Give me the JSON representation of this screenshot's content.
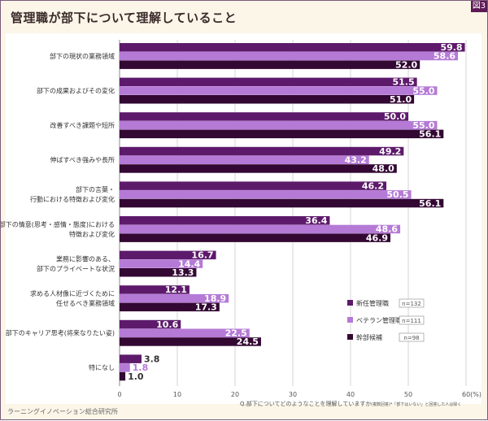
{
  "figure_tag": "図3",
  "title": "管理職が部下について理解していること",
  "credit": "ラーニングイノベーション総合研究所",
  "question_note": "Q.部下についてどのようなことを理解していますか",
  "question_note_small": "(複数回答)*「部下はいない」と回答した人は除く",
  "colors": {
    "series1": "#5d1a6b",
    "series2": "#b57ad6",
    "series3": "#330833",
    "frame": "#fbf6e8",
    "grid": "#cccccc"
  },
  "chart_data": {
    "type": "bar",
    "orientation": "horizontal",
    "categories": [
      [
        "部下の現状の業務領域"
      ],
      [
        "部下の成果およびその変化"
      ],
      [
        "改善すべき課題や短所"
      ],
      [
        "伸ばすべき強みや長所"
      ],
      [
        "部下の言葉・",
        "行動における特徴および変化"
      ],
      [
        "部下の情意(思考・感情・態度)における",
        "特徴および変化"
      ],
      [
        "業務に影響のある、",
        "部下のプライベートな状況"
      ],
      [
        "求める人材像に近づくために",
        "任せるべき業務領域"
      ],
      [
        "部下のキャリア思考(将来なりたい姿)"
      ],
      [
        "特になし"
      ]
    ],
    "series": [
      {
        "name": "新任管理職",
        "n_label": "n=132",
        "values": [
          59.8,
          51.5,
          50.0,
          49.2,
          46.2,
          36.4,
          16.7,
          12.1,
          10.6,
          3.8
        ]
      },
      {
        "name": "ベテラン管理職",
        "n_label": "n=111",
        "values": [
          58.6,
          55.0,
          55.0,
          43.2,
          50.5,
          48.6,
          14.4,
          18.9,
          22.5,
          1.8
        ]
      },
      {
        "name": "幹部候補",
        "n_label": "n=98",
        "values": [
          52.0,
          51.0,
          56.1,
          48.0,
          56.1,
          46.9,
          13.3,
          17.3,
          24.5,
          1.0
        ]
      }
    ],
    "xlim": [
      0,
      60
    ],
    "xticks": [
      "0",
      "10",
      "20",
      "30",
      "40",
      "50",
      "60(%)"
    ],
    "grid": true,
    "legend_position": "lower-right"
  }
}
